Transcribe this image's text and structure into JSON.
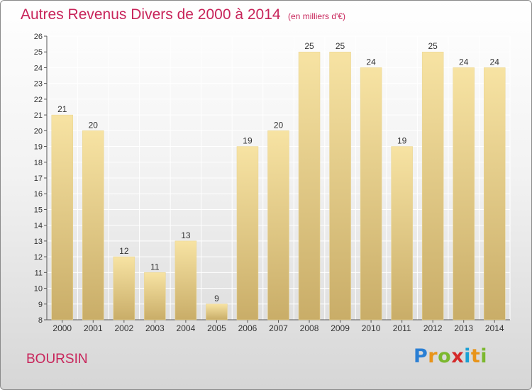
{
  "header": {
    "title": "Autres Revenus Divers de 2000 à 2014",
    "subtitle": "(en milliers d'€)"
  },
  "footer": {
    "commune": "BOURSIN",
    "logo_text": "Proxiti",
    "logo_colors": [
      "#2a7fd4",
      "#e8941a",
      "#7cb82f",
      "#d42a2a",
      "#1aa0d4",
      "#e8941a",
      "#7cb82f"
    ]
  },
  "colors": {
    "title": "#c8245a",
    "bar_light": "#f7e3a3",
    "bar_dark": "#c9ad68"
  },
  "chart_data": {
    "type": "bar",
    "categories": [
      "2000",
      "2001",
      "2002",
      "2003",
      "2004",
      "2005",
      "2006",
      "2007",
      "2008",
      "2009",
      "2010",
      "2011",
      "2012",
      "2013",
      "2014"
    ],
    "values": [
      21,
      20,
      12,
      11,
      13,
      9,
      19,
      20,
      25,
      25,
      24,
      19,
      25,
      24,
      24
    ],
    "title": "Autres Revenus Divers de 2000 à 2014",
    "xlabel": "",
    "ylabel": "",
    "ylim": [
      8,
      26
    ],
    "yticks": [
      8,
      9,
      10,
      11,
      12,
      13,
      14,
      15,
      16,
      17,
      18,
      19,
      20,
      21,
      22,
      23,
      24,
      25,
      26
    ],
    "grid": true,
    "data_labels": true
  }
}
